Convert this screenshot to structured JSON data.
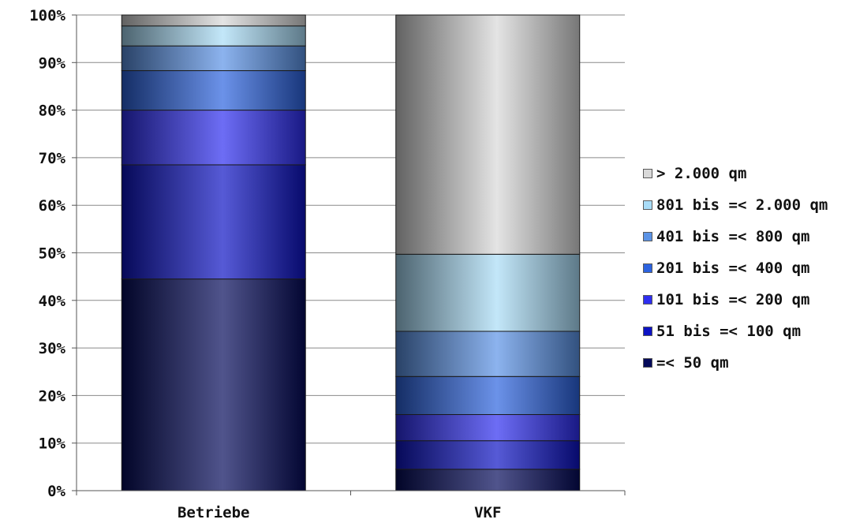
{
  "chart_data": {
    "type": "stacked-bar-100",
    "categories": [
      "Betriebe",
      "VKF"
    ],
    "y_ticks": [
      "0%",
      "10%",
      "20%",
      "30%",
      "40%",
      "50%",
      "60%",
      "70%",
      "80%",
      "90%",
      "100%"
    ],
    "ylim": [
      0,
      100
    ],
    "grid": true,
    "legend_position": "right",
    "series": [
      {
        "name": "=< 50 qm",
        "color": "#050a5a",
        "values": [
          44.5,
          4.5
        ]
      },
      {
        "name": "51 bis =< 100 qm",
        "color": "#0d13c4",
        "values": [
          24.0,
          6.0
        ]
      },
      {
        "name": "101 bis =< 200 qm",
        "color": "#2e2ef0",
        "values": [
          11.5,
          5.5
        ]
      },
      {
        "name": "201 bis =< 400 qm",
        "color": "#2c63e0",
        "values": [
          8.3,
          8.0
        ]
      },
      {
        "name": "401 bis =< 800 qm",
        "color": "#5b93e6",
        "values": [
          5.2,
          9.5
        ]
      },
      {
        "name": "801 bis =< 2.000 qm",
        "color": "#a9dcf7",
        "values": [
          4.2,
          16.2
        ]
      },
      {
        "name": "> 2.000 qm",
        "color": "#d9d9d9",
        "values": [
          2.3,
          50.3
        ]
      }
    ]
  }
}
